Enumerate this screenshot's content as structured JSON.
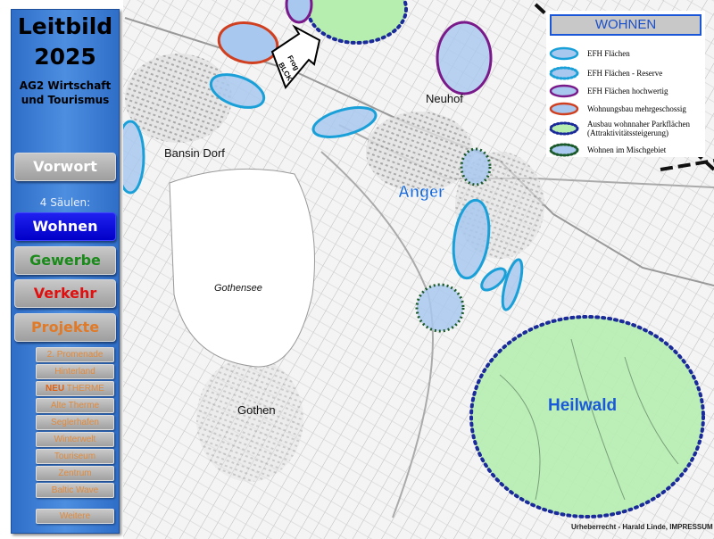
{
  "sidebar": {
    "title_line1": "Leitbild",
    "title_line2": "2025",
    "subtitle_line1": "AG2 Wirtschaft",
    "subtitle_line2": "und Tourismus",
    "vorwort": "Vorwort",
    "saeulen_label": "4 Säulen:",
    "wohnen": "Wohnen",
    "gewerbe": "Gewerbe",
    "verkehr": "Verkehr",
    "projekte": "Projekte",
    "projects": [
      {
        "label": "2. Promenade"
      },
      {
        "label": "Hinterland"
      },
      {
        "label": "THERME",
        "prefix": "NEU"
      },
      {
        "label": "Alte  Therme"
      },
      {
        "label": "Seglerhafen"
      },
      {
        "label": "Winterwelt"
      },
      {
        "label": "Touriseum"
      },
      {
        "label": "Zentrum"
      },
      {
        "label": "Baltic Wave"
      }
    ],
    "weitere": "Weitere"
  },
  "map": {
    "labels": {
      "bansin_dorf": "Bansin Dorf",
      "neuhof": "Neuhof",
      "anger": "Anger",
      "gothensee": "Gothensee",
      "gothen": "Gothen",
      "heilwald": "Heilwald"
    },
    "arrow_text_line1": "Frog",
    "arrow_text_line2": "BLCK"
  },
  "legend": {
    "title": "WOHNEN",
    "items": [
      {
        "label": "EFH Flächen",
        "stroke": "#1aa0d8",
        "style": "solid"
      },
      {
        "label": "EFH Flächen - Reserve",
        "stroke": "#1aa0d8",
        "style": "dotted"
      },
      {
        "label": "EFH Flächen hochwertig",
        "stroke": "#7a1a8a",
        "style": "solid"
      },
      {
        "label": "Wohnungsbau mehrgeschossig",
        "stroke": "#d04020",
        "style": "solid"
      },
      {
        "label": "Ausbau wohnnaher Parkflächen",
        "label2": "(Attraktivitätssteigerung)",
        "stroke": "#1a2a9a",
        "style": "dotted-green"
      },
      {
        "label": "Wohnen im Mischgebiet",
        "stroke": "#1a5a2a",
        "style": "dotted"
      }
    ]
  },
  "copyright": "Urheberrecht - Harald Linde, IMPRESSUM",
  "colors": {
    "sidebar_bg": "#3d7ed6",
    "active_button": "#1010e0",
    "gewerbe_text": "#1a8a1a",
    "verkehr_text": "#e01010",
    "projekte_text": "#e07a28",
    "area_fill": "#a9c8ef",
    "park_fill": "#b6eeb0"
  }
}
